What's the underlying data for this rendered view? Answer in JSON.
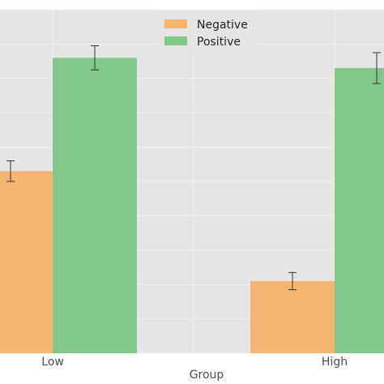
{
  "chart_data": {
    "type": "bar",
    "xlabel": "Group",
    "ylabel": "",
    "categories": [
      "Low",
      "High"
    ],
    "series": [
      {
        "name": "Negative",
        "values": [
          0.53,
          0.21
        ],
        "errors": [
          0.03,
          0.025
        ],
        "color": "#f5b46f"
      },
      {
        "name": "Positive",
        "values": [
          0.86,
          0.83
        ],
        "errors": [
          0.035,
          0.045
        ],
        "color": "#84c78b"
      }
    ],
    "ylim": [
      0,
      1
    ],
    "grid": true,
    "legend_position": "top-center",
    "colors": {
      "background": "#e5e5e5",
      "grid": "#f2f2f2",
      "errorbar": "#333333"
    }
  }
}
